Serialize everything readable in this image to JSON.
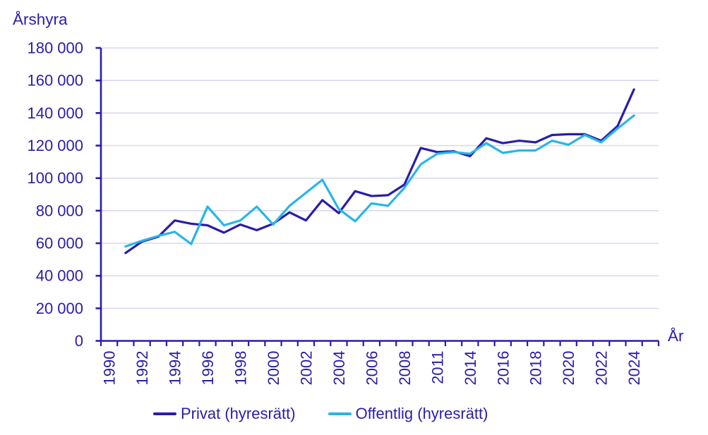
{
  "colors": {
    "axis": "#2a1da9",
    "text": "#2a1da9",
    "gridline": "#d9d9ef",
    "background": "#ffffff",
    "series_privat": "#2a1da9",
    "series_offentlig": "#29b5e8"
  },
  "chart_data": {
    "type": "line",
    "title": "",
    "y_axis_title": "Årshyra",
    "x_axis_title": "År",
    "ylim": [
      0,
      180000
    ],
    "y_tick_step": 20000,
    "grid": "horizontal",
    "legend_position": "bottom",
    "y_tick_labels": [
      "0",
      "20 000",
      "40 000",
      "60 000",
      "80 000",
      "100 000",
      "120 000",
      "140 000",
      "160 000",
      "180 000"
    ],
    "categories": [
      1990,
      1991,
      1992,
      1993,
      1994,
      1995,
      1996,
      1997,
      1998,
      1999,
      2000,
      2001,
      2002,
      2003,
      2004,
      2005,
      2006,
      2007,
      2008,
      2010,
      2011,
      2012,
      2014,
      2015,
      2016,
      2017,
      2018,
      2019,
      2020,
      2021,
      2022,
      2023,
      2024
    ],
    "labeled_category_indices": [
      0,
      2,
      4,
      6,
      8,
      10,
      12,
      14,
      16,
      18,
      20,
      22,
      24,
      26,
      28,
      30,
      32
    ],
    "x_tick_labels": [
      "1990",
      "1992",
      "1994",
      "1996",
      "1998",
      "2000",
      "2002",
      "2004",
      "2006",
      "2008",
      "2011",
      "2014",
      "2016",
      "2018",
      "2020",
      "2022",
      "2024"
    ],
    "series": [
      {
        "name": "Privat (hyresrätt)",
        "color": "#2a1da9",
        "values": [
          null,
          54000,
          61000,
          64000,
          74000,
          72000,
          71000,
          66500,
          71500,
          68000,
          72000,
          79000,
          74000,
          86500,
          78500,
          92000,
          89000,
          89500,
          96000,
          118500,
          116000,
          116500,
          113500,
          124500,
          121500,
          123000,
          122000,
          126500,
          127000,
          127000,
          123000,
          132000,
          154500
        ]
      },
      {
        "name": "Offentlig (hyresrätt)",
        "color": "#29b5e8",
        "values": [
          null,
          58000,
          61500,
          64500,
          67000,
          59500,
          82500,
          71000,
          74000,
          82500,
          71500,
          83000,
          91000,
          99000,
          81000,
          73500,
          84500,
          83000,
          94000,
          108500,
          115000,
          116000,
          115000,
          121500,
          115500,
          117000,
          117000,
          123000,
          120500,
          126500,
          122000,
          130500,
          138500
        ]
      }
    ]
  }
}
